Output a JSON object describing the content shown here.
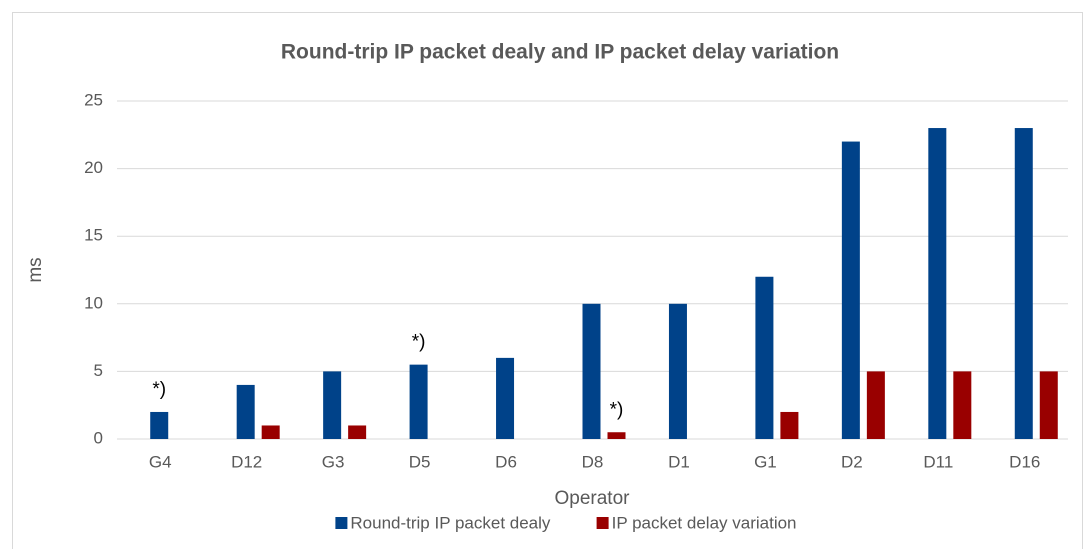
{
  "chart_data": {
    "type": "bar",
    "title": "Round-trip IP packet dealy and IP packet delay variation",
    "x_label": "Operator",
    "y_label": "ms",
    "categories": [
      "G4",
      "D12",
      "G3",
      "D5",
      "D6",
      "D8",
      "D1",
      "G1",
      "D2",
      "D11",
      "D16"
    ],
    "series": [
      {
        "name": "Round-trip IP packet dealy",
        "color": "#004289",
        "values": [
          2,
          4,
          5,
          5.5,
          6,
          10,
          10,
          12,
          22,
          23,
          23
        ]
      },
      {
        "name": "IP packet delay variation",
        "color": "#990000",
        "values": [
          null,
          1,
          1,
          null,
          null,
          0.5,
          null,
          2,
          5,
          5,
          5
        ]
      }
    ],
    "annotations": [
      {
        "text": "*)",
        "category": "G4",
        "series": "Round-trip IP packet dealy"
      },
      {
        "text": "*)",
        "category": "D5",
        "series": "Round-trip IP packet dealy"
      },
      {
        "text": "*)",
        "category": "D8",
        "series": "IP packet delay variation"
      }
    ],
    "ylim": [
      0,
      25
    ],
    "yticks": [
      0,
      5,
      10,
      15,
      20,
      25
    ],
    "grid": true,
    "legend": "bottom"
  }
}
